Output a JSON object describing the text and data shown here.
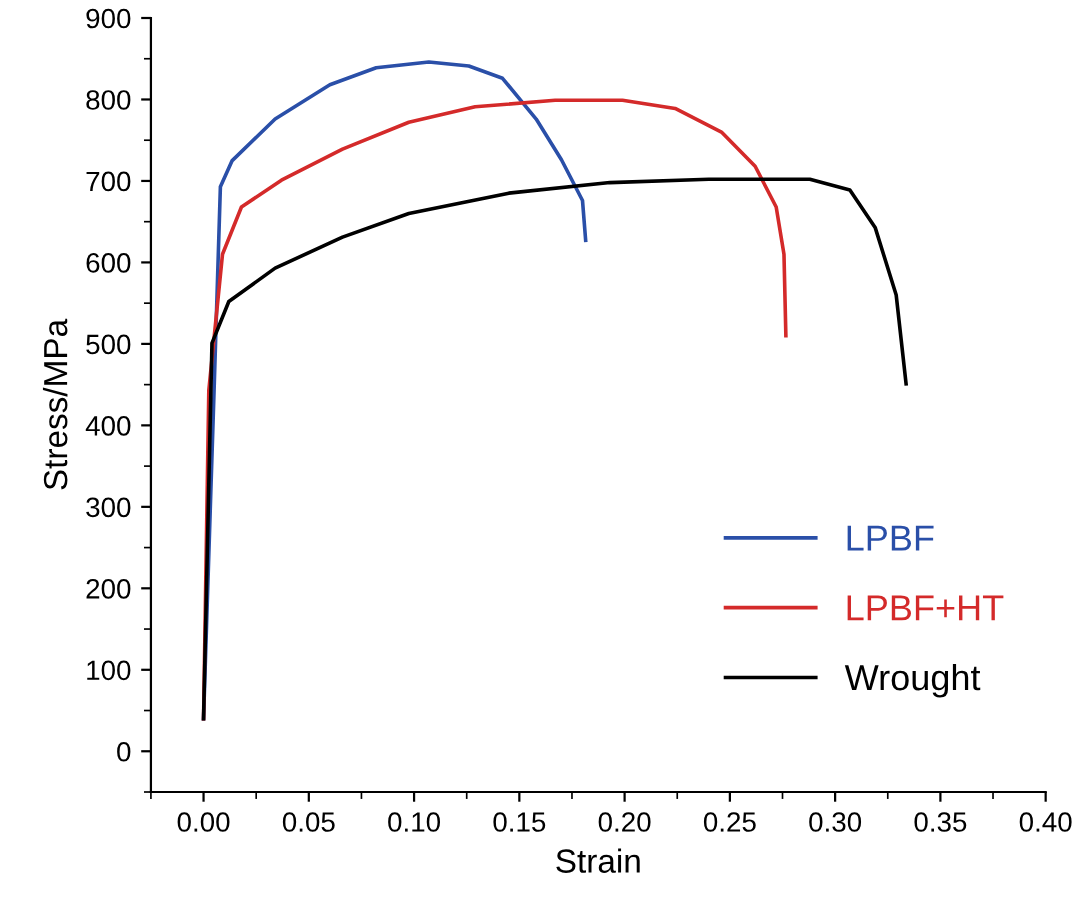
{
  "chart_data": {
    "type": "line",
    "xlabel": "Strain",
    "ylabel": "Stress/MPa",
    "xlim": [
      -0.025,
      0.4
    ],
    "xticks": [
      {
        "value": 0,
        "label": "0.00"
      },
      {
        "value": 0.05,
        "label": "0.05"
      },
      {
        "value": 0.1,
        "label": "0.10"
      },
      {
        "value": 0.15,
        "label": "0.15"
      },
      {
        "value": 0.2,
        "label": "0.20"
      },
      {
        "value": 0.25,
        "label": "0.25"
      },
      {
        "value": 0.3,
        "label": "0.30"
      },
      {
        "value": 0.35,
        "label": "0.35"
      },
      {
        "value": 0.4,
        "label": "0.40"
      }
    ],
    "ylim": [
      -50,
      900
    ],
    "yticks": [
      0,
      100,
      200,
      300,
      400,
      500,
      600,
      700,
      800,
      900
    ],
    "grid": false,
    "legend": "bottom right",
    "marker": "none",
    "line_style": "solid",
    "series": [
      {
        "name": "LPBF",
        "color": "#2a4fa8",
        "x": [
          0,
          0.005,
          0.008,
          0.0136,
          0.034,
          0.06,
          0.082,
          0.107,
          0.126,
          0.142,
          0.158,
          0.17,
          0.18,
          0.1815
        ],
        "values": [
          40,
          443,
          693,
          725,
          776,
          818,
          839,
          846,
          841,
          826,
          776,
          726,
          676,
          627
        ]
      },
      {
        "name": "LPBF+HT",
        "color": "#d42a2a",
        "x": [
          0,
          0.0025,
          0.009,
          0.018,
          0.037,
          0.066,
          0.0975,
          0.129,
          0.167,
          0.199,
          0.224,
          0.246,
          0.262,
          0.272,
          0.2757,
          0.2766
        ],
        "values": [
          40,
          443,
          610,
          668,
          701,
          739,
          772,
          791,
          799,
          799,
          789,
          760,
          718,
          668,
          610,
          510
        ]
      },
      {
        "name": "Wrought",
        "color": "#000000",
        "x": [
          0,
          0.004,
          0.012,
          0.034,
          0.066,
          0.0975,
          0.145,
          0.193,
          0.24,
          0.288,
          0.307,
          0.319,
          0.329,
          0.3337
        ],
        "values": [
          40,
          501,
          552,
          593,
          631,
          660,
          685,
          698,
          702,
          702,
          689,
          643,
          560,
          451
        ]
      }
    ]
  }
}
